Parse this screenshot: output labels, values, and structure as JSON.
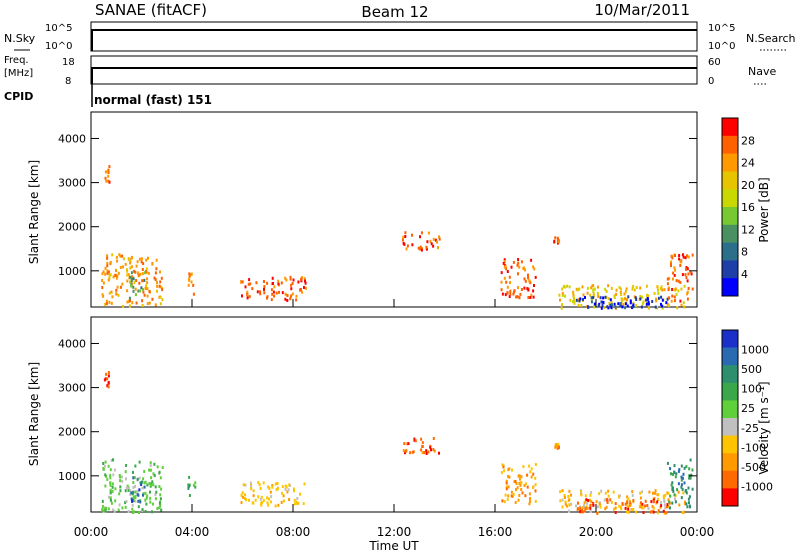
{
  "header": {
    "site": "SANAE (fitACF)",
    "beam": "Beam 12",
    "date": "10/Mar/2011"
  },
  "aux_panels": {
    "nsky": {
      "label": "N.Sky",
      "ticks": [
        "10^5",
        "10^0"
      ],
      "right_label": "N.Search",
      "right_ticks": [
        "10^5",
        "10^0"
      ]
    },
    "freq": {
      "label_line1": "Freq.",
      "label_line2": "[MHz]",
      "ticks": [
        "18",
        "8"
      ],
      "right_label": "Nave",
      "right_ticks": [
        "60",
        "0"
      ]
    },
    "cpid": {
      "label": "CPID",
      "value": "normal (fast) 151"
    }
  },
  "chart_data": [
    {
      "type": "heatmap",
      "panel": "power",
      "xlabel": "",
      "ylabel": "Slant Range [km]",
      "y_ticks": [
        "1000",
        "2000",
        "3000",
        "4000"
      ],
      "ylim": [
        180,
        4600
      ],
      "xlim": [
        0,
        24
      ],
      "colorbar": {
        "label": "Power [dB]",
        "ticks": [
          "28",
          "24",
          "20",
          "16",
          "12",
          "8",
          "4"
        ],
        "colors": [
          "#ff0000",
          "#ff6000",
          "#ff9900",
          "#e6c400",
          "#c8d800",
          "#77c833",
          "#4a9060",
          "#2b6f8a",
          "#1f3fa8",
          "#0000ff"
        ]
      },
      "patches": [
        {
          "t0": 0.4,
          "t1": 2.8,
          "r0": 200,
          "r1": 1400,
          "lvl": 2
        },
        {
          "t0": 1.5,
          "t1": 2.1,
          "r0": 400,
          "r1": 1000,
          "lvl": 6
        },
        {
          "t0": 0.5,
          "t1": 0.7,
          "r0": 3000,
          "r1": 3400,
          "lvl": 1
        },
        {
          "t0": 3.8,
          "t1": 4.1,
          "r0": 500,
          "r1": 1000,
          "lvl": 2
        },
        {
          "t0": 5.9,
          "t1": 8.5,
          "r0": 350,
          "r1": 900,
          "lvl": 1
        },
        {
          "t0": 12.3,
          "t1": 13.8,
          "r0": 1500,
          "r1": 1900,
          "lvl": 1
        },
        {
          "t0": 16.2,
          "t1": 17.6,
          "r0": 400,
          "r1": 1300,
          "lvl": 1
        },
        {
          "t0": 18.3,
          "t1": 18.5,
          "r0": 1650,
          "r1": 1800,
          "lvl": 1
        },
        {
          "t0": 18.5,
          "t1": 23.5,
          "r0": 180,
          "r1": 700,
          "lvl": 3
        },
        {
          "t0": 19.2,
          "t1": 22.8,
          "r0": 180,
          "r1": 450,
          "lvl": 8
        },
        {
          "t0": 20.0,
          "t1": 22.0,
          "r0": 180,
          "r1": 320,
          "lvl": 9
        },
        {
          "t0": 22.8,
          "t1": 23.8,
          "r0": 300,
          "r1": 1400,
          "lvl": 1
        }
      ]
    },
    {
      "type": "heatmap",
      "panel": "velocity",
      "xlabel": "Time UT",
      "ylabel": "Slant Range [km]",
      "x_ticks": [
        "00:00",
        "04:00",
        "08:00",
        "12:00",
        "16:00",
        "20:00",
        "00:00"
      ],
      "y_ticks": [
        "1000",
        "2000",
        "3000",
        "4000"
      ],
      "ylim": [
        180,
        4600
      ],
      "xlim": [
        0,
        24
      ],
      "colorbar": {
        "label": "Velocity [m s⁻¹]",
        "ticks": [
          "1000",
          "500",
          "100",
          "25",
          "-25",
          "-100",
          "-500",
          "-1000"
        ],
        "colors": [
          "#1a30c8",
          "#2a6ab0",
          "#2e8f6e",
          "#3aa84a",
          "#5fcf3a",
          "#c0c0c0",
          "#ffc400",
          "#ff9a00",
          "#ff6a00",
          "#ff0000"
        ]
      },
      "patches": [
        {
          "t0": 0.4,
          "t1": 2.8,
          "r0": 200,
          "r1": 1400,
          "lvl": 4
        },
        {
          "t0": 1.5,
          "t1": 2.1,
          "r0": 400,
          "r1": 1000,
          "lvl": 1
        },
        {
          "t0": 0.5,
          "t1": 0.7,
          "r0": 3000,
          "r1": 3400,
          "lvl": 9
        },
        {
          "t0": 3.8,
          "t1": 4.1,
          "r0": 500,
          "r1": 1000,
          "lvl": 3
        },
        {
          "t0": 5.9,
          "t1": 8.5,
          "r0": 350,
          "r1": 900,
          "lvl": 6
        },
        {
          "t0": 12.3,
          "t1": 13.8,
          "r0": 1500,
          "r1": 1900,
          "lvl": 8
        },
        {
          "t0": 16.2,
          "t1": 17.6,
          "r0": 400,
          "r1": 1300,
          "lvl": 7
        },
        {
          "t0": 18.3,
          "t1": 18.5,
          "r0": 1650,
          "r1": 1800,
          "lvl": 7
        },
        {
          "t0": 18.5,
          "t1": 23.5,
          "r0": 180,
          "r1": 700,
          "lvl": 6
        },
        {
          "t0": 19.2,
          "t1": 22.8,
          "r0": 180,
          "r1": 500,
          "lvl": 8
        },
        {
          "t0": 22.8,
          "t1": 23.8,
          "r0": 300,
          "r1": 1400,
          "lvl": 2
        }
      ]
    }
  ]
}
